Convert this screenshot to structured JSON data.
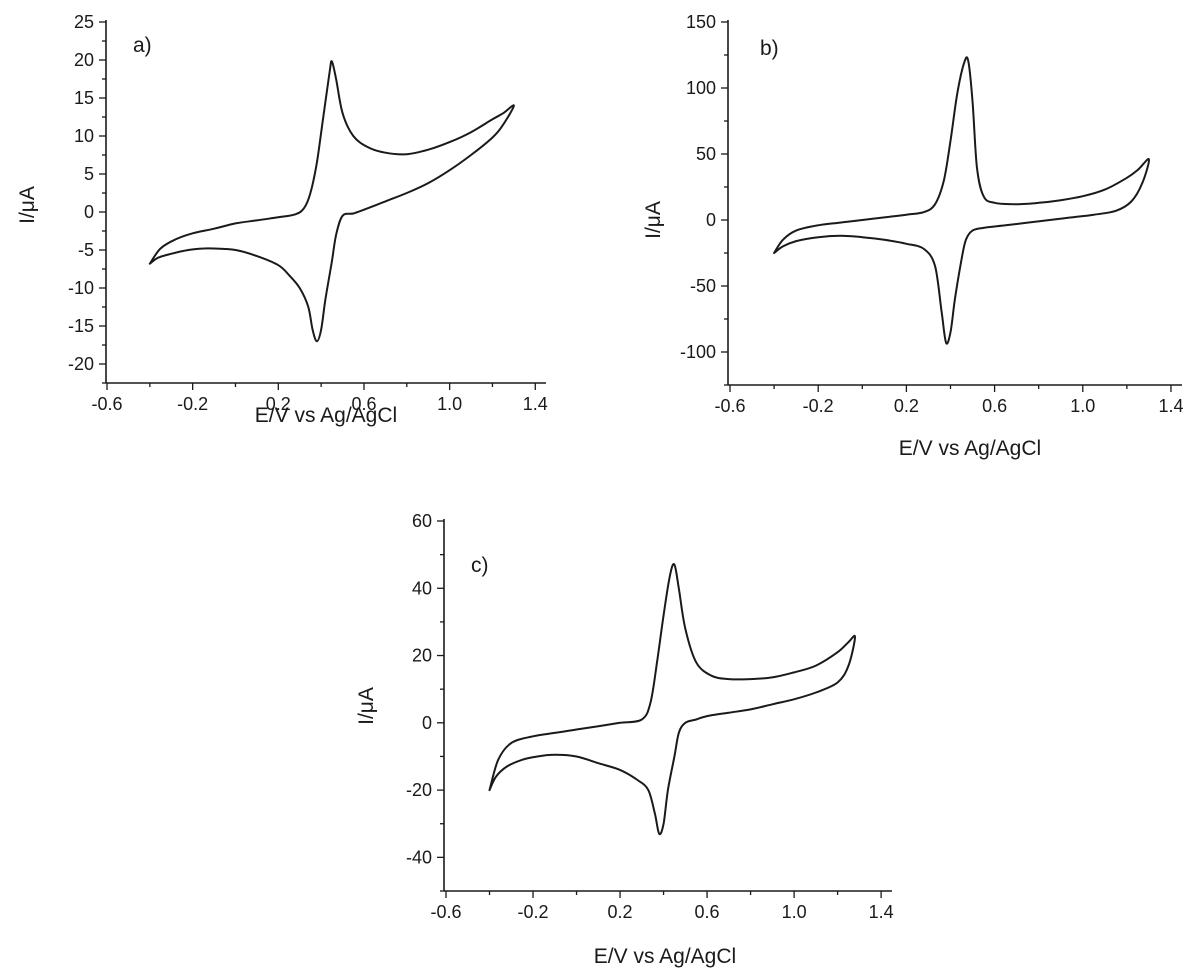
{
  "chart_data": [
    {
      "type": "line",
      "panel_label": "a)",
      "xlabel": "E/V vs Ag/AgCl",
      "ylabel": "I/μA",
      "xlim": [
        -0.6,
        1.45
      ],
      "ylim": [
        -22.5,
        25
      ],
      "x_ticks": [
        "-0.6",
        "-0.2",
        "0.2",
        "0.6",
        "1.0",
        "1.4"
      ],
      "y_ticks": [
        "25",
        "20",
        "15",
        "10",
        "5",
        "0",
        "-5",
        "-10",
        "-15",
        "-20"
      ],
      "series": [
        {
          "x": [
            -0.4,
            -0.35,
            -0.28,
            -0.2,
            -0.1,
            0.0,
            0.1,
            0.2,
            0.28,
            0.32,
            0.35,
            0.38,
            0.41,
            0.44,
            0.45,
            0.47,
            0.5,
            0.55,
            0.62,
            0.7,
            0.8,
            0.9,
            1.0,
            1.1,
            1.2,
            1.25,
            1.3,
            1.25,
            1.2,
            1.1,
            1.0,
            0.9,
            0.8,
            0.7,
            0.6,
            0.55,
            0.5,
            0.47,
            0.45,
            0.42,
            0.4,
            0.38,
            0.36,
            0.34,
            0.3,
            0.25,
            0.2,
            0.1,
            0.0,
            -0.1,
            -0.15,
            -0.22,
            -0.3,
            -0.36,
            -0.4
          ],
          "y": [
            -6.8,
            -4.8,
            -3.6,
            -2.8,
            -2.2,
            -1.5,
            -1.1,
            -0.7,
            -0.3,
            0.5,
            2.5,
            6.5,
            12.5,
            18.5,
            19.8,
            17.5,
            13.0,
            10.0,
            8.5,
            7.8,
            7.6,
            8.2,
            9.2,
            10.5,
            12.2,
            13.0,
            14.0,
            11.5,
            9.8,
            7.5,
            5.5,
            3.8,
            2.5,
            1.4,
            0.3,
            -0.2,
            -0.5,
            -3.0,
            -6.5,
            -11.5,
            -15.5,
            -17.0,
            -15.5,
            -12.5,
            -10.0,
            -8.3,
            -7.0,
            -5.8,
            -5.0,
            -4.8,
            -4.8,
            -5.0,
            -5.5,
            -6.0,
            -6.8
          ]
        }
      ]
    },
    {
      "type": "line",
      "panel_label": "b)",
      "xlabel": "E/V vs Ag/AgCl",
      "ylabel": "I/μA",
      "xlim": [
        -0.6,
        1.45
      ],
      "ylim": [
        -125,
        150
      ],
      "x_ticks": [
        "-0.6",
        "-0.2",
        "0.2",
        "0.6",
        "1.0",
        "1.4"
      ],
      "y_ticks": [
        "150",
        "100",
        "50",
        "0",
        "-50",
        "-100"
      ],
      "series": [
        {
          "x": [
            -0.4,
            -0.36,
            -0.3,
            -0.2,
            -0.1,
            0.0,
            0.1,
            0.2,
            0.28,
            0.33,
            0.37,
            0.4,
            0.43,
            0.46,
            0.48,
            0.5,
            0.52,
            0.55,
            0.6,
            0.7,
            0.8,
            0.9,
            1.0,
            1.1,
            1.2,
            1.25,
            1.3,
            1.27,
            1.22,
            1.15,
            1.05,
            0.95,
            0.85,
            0.75,
            0.65,
            0.55,
            0.5,
            0.47,
            0.45,
            0.42,
            0.4,
            0.38,
            0.36,
            0.33,
            0.28,
            0.2,
            0.1,
            0.0,
            -0.1,
            -0.2,
            -0.3,
            -0.36,
            -0.4
          ],
          "y": [
            -25,
            -15,
            -8,
            -4,
            -2,
            0,
            2,
            4,
            6,
            12,
            30,
            60,
            95,
            118,
            121,
            90,
            40,
            18,
            13,
            12,
            13,
            15,
            18,
            23,
            32,
            38,
            46,
            28,
            14,
            7,
            4,
            2,
            0,
            -2,
            -4,
            -6,
            -8,
            -15,
            -30,
            -60,
            -85,
            -93,
            -70,
            -35,
            -22,
            -18,
            -15,
            -13,
            -12,
            -13,
            -16,
            -20,
            -25
          ]
        }
      ]
    },
    {
      "type": "line",
      "panel_label": "c)",
      "xlabel": "E/V vs Ag/AgCl",
      "ylabel": "I/μA",
      "xlim": [
        -0.6,
        1.45
      ],
      "ylim": [
        -50,
        60
      ],
      "x_ticks": [
        "-0.6",
        "-0.2",
        "0.2",
        "0.6",
        "1.0",
        "1.4"
      ],
      "y_ticks": [
        "60",
        "40",
        "20",
        "0",
        "-20",
        "-40"
      ],
      "series": [
        {
          "x": [
            -0.4,
            -0.36,
            -0.3,
            -0.2,
            -0.1,
            0.0,
            0.1,
            0.2,
            0.3,
            0.34,
            0.37,
            0.4,
            0.43,
            0.45,
            0.47,
            0.5,
            0.55,
            0.62,
            0.7,
            0.8,
            0.9,
            1.0,
            1.1,
            1.2,
            1.25,
            1.28,
            1.25,
            1.2,
            1.1,
            1.0,
            0.9,
            0.8,
            0.7,
            0.6,
            0.55,
            0.5,
            0.47,
            0.45,
            0.42,
            0.4,
            0.38,
            0.36,
            0.33,
            0.28,
            0.2,
            0.1,
            0.0,
            -0.1,
            -0.18,
            -0.25,
            -0.32,
            -0.37,
            -0.4
          ],
          "y": [
            -20,
            -11,
            -6,
            -4,
            -3,
            -2,
            -1,
            0,
            1,
            6,
            18,
            32,
            44,
            47,
            40,
            28,
            18,
            14,
            13,
            13,
            13.5,
            15,
            17,
            21,
            24,
            25.5,
            17,
            12,
            9,
            7,
            5.5,
            4,
            3,
            2,
            1,
            0,
            -3,
            -10,
            -20,
            -30,
            -33,
            -27,
            -20,
            -17,
            -14,
            -12,
            -10,
            -9.5,
            -10,
            -11,
            -13,
            -16,
            -20
          ]
        }
      ]
    }
  ]
}
